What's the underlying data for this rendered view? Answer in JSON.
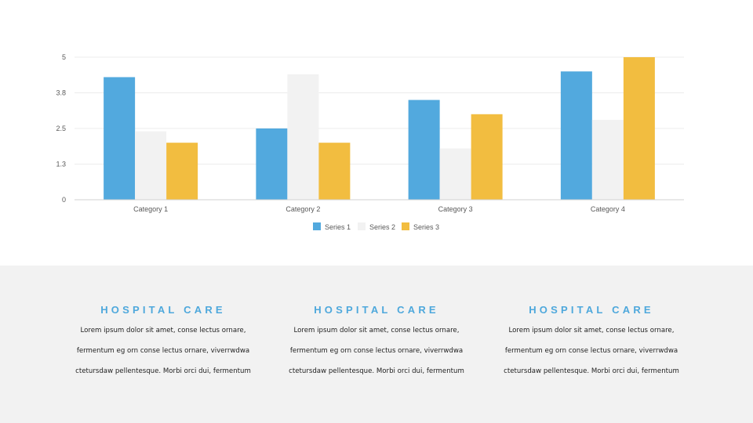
{
  "chart_data": {
    "type": "bar",
    "categories": [
      "Category 1",
      "Category 2",
      "Category 3",
      "Category 4"
    ],
    "series": [
      {
        "name": "Series 1",
        "values": [
          4.3,
          2.5,
          3.5,
          4.5
        ],
        "color": "#52a9de"
      },
      {
        "name": "Series 2",
        "values": [
          2.4,
          4.4,
          1.8,
          2.8
        ],
        "color": "#f2f2f2"
      },
      {
        "name": "Series 3",
        "values": [
          2.0,
          2.0,
          3.0,
          5.0
        ],
        "color": "#f2bd40"
      }
    ],
    "yticks": [
      {
        "value": 0,
        "label": "0"
      },
      {
        "value": 1.25,
        "label": "1.3"
      },
      {
        "value": 2.5,
        "label": "2.5"
      },
      {
        "value": 3.75,
        "label": "3.8"
      },
      {
        "value": 5,
        "label": "5"
      }
    ],
    "ylim": [
      0,
      5
    ],
    "grid": true,
    "legend_position": "bottom",
    "title": "",
    "xlabel": "",
    "ylabel": ""
  },
  "columns": [
    {
      "title": "HOSPITAL CARE",
      "lines": [
        "Lorem ipsum dolor sit amet, conse lectus ornare,",
        "fermentum eg orn conse lectus ornare, viverrwdwa",
        "ctetursdaw pellentesque. Morbi orci dui, fermentum"
      ]
    },
    {
      "title": "HOSPITAL CARE",
      "lines": [
        "Lorem ipsum dolor sit amet, conse lectus ornare,",
        "fermentum eg orn conse lectus ornare, viverrwdwa",
        "ctetursdaw pellentesque. Morbi orci dui, fermentum"
      ]
    },
    {
      "title": "HOSPITAL CARE",
      "lines": [
        "Lorem ipsum dolor sit amet, conse lectus ornare,",
        "fermentum eg orn conse lectus ornare, viverrwdwa",
        "ctetursdaw pellentesque. Morbi orci dui, fermentum"
      ]
    }
  ]
}
